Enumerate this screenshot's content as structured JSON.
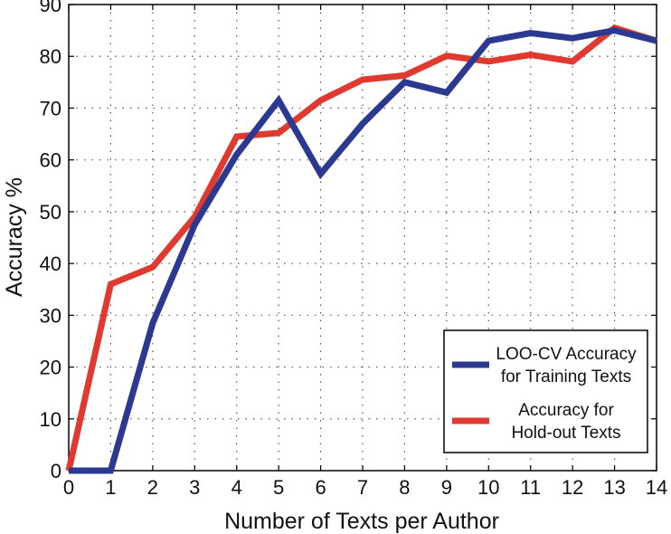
{
  "chart_data": {
    "type": "line",
    "title": "",
    "xlabel": "Number of Texts per Author",
    "ylabel": "Accuracy %",
    "x": [
      0,
      1,
      2,
      3,
      4,
      5,
      6,
      7,
      8,
      9,
      10,
      11,
      12,
      13,
      14
    ],
    "xlim": [
      0,
      14
    ],
    "ylim": [
      0,
      90
    ],
    "xticks": [
      "0",
      "1",
      "2",
      "3",
      "4",
      "5",
      "6",
      "7",
      "8",
      "9",
      "10",
      "11",
      "12",
      "13",
      "14"
    ],
    "yticks": [
      "0",
      "10",
      "20",
      "30",
      "40",
      "50",
      "60",
      "70",
      "80",
      "90"
    ],
    "grid": true,
    "legend_position": "bottom-right",
    "series": [
      {
        "name": "LOO-CV Accuracy for Training Texts",
        "legend_lines": [
          "LOO-CV Accuracy",
          "for Training Texts"
        ],
        "color": "#2b3990",
        "values": [
          0,
          0,
          28.5,
          47.5,
          61,
          71.5,
          57.3,
          67,
          75,
          73,
          83,
          84.5,
          83.5,
          85,
          83
        ]
      },
      {
        "name": "Accuracy for Hold-out Texts",
        "legend_lines": [
          "Accuracy for",
          "Hold-out Texts"
        ],
        "color": "#e03a30",
        "values": [
          0,
          36,
          39.3,
          49,
          64.5,
          65.2,
          71.5,
          75.5,
          76.3,
          80.1,
          79,
          80.3,
          79,
          85.5,
          83
        ]
      }
    ]
  }
}
